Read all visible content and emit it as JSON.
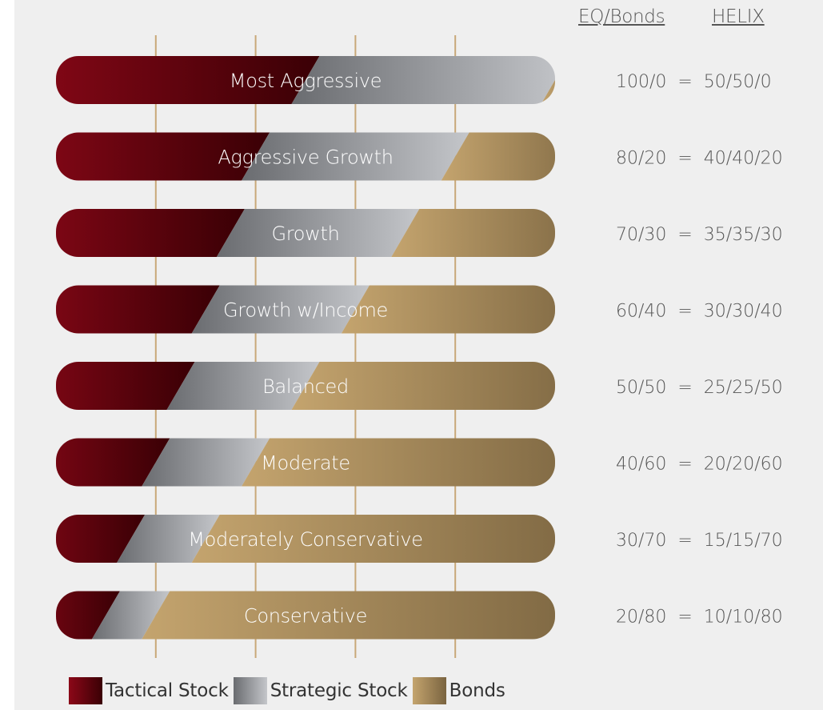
{
  "header": {
    "col1": "EQ/Bonds",
    "col2": "HELIX"
  },
  "chart_data": {
    "type": "bar",
    "stacked": true,
    "orientation": "horizontal",
    "categories": [
      "Most Aggressive",
      "Aggressive Growth",
      "Growth",
      "Growth w/Income",
      "Balanced",
      "Moderate",
      "Moderately Conservative",
      "Conservative"
    ],
    "series": [
      {
        "name": "Tactical Stock",
        "values": [
          50,
          40,
          35,
          30,
          25,
          20,
          15,
          10
        ]
      },
      {
        "name": "Strategic Stock",
        "values": [
          50,
          40,
          35,
          30,
          25,
          20,
          15,
          10
        ]
      },
      {
        "name": "Bonds",
        "values": [
          0,
          20,
          30,
          40,
          50,
          60,
          70,
          80
        ]
      }
    ],
    "ratios": [
      "100/0  =  50/50/0",
      "80/20  =  40/40/20",
      "70/30  =  35/35/30",
      "60/40  =  30/30/40",
      "50/50  =  25/25/50",
      "40/60  =  20/20/60",
      "30/70  =  15/15/70",
      "20/80  =  10/10/80"
    ],
    "xlim": [
      0,
      100
    ],
    "gridlines": [
      20,
      40,
      60,
      80
    ],
    "grid": true,
    "legend_position": "bottom-left"
  },
  "colors": {
    "tactical_start": "#8c0818",
    "tactical_end": "#3a0005",
    "strategic_start": "#6a6c70",
    "strategic_end": "#c4c6ca",
    "bonds_start": "#c4a46e",
    "bonds_end": "#7a6440",
    "gridline": "#c8a878",
    "label_text": "#ffffff",
    "ratio_text": "#555555"
  },
  "legend": {
    "tactical": "Tactical Stock",
    "strategic": "Strategic Stock",
    "bonds": "Bonds"
  }
}
